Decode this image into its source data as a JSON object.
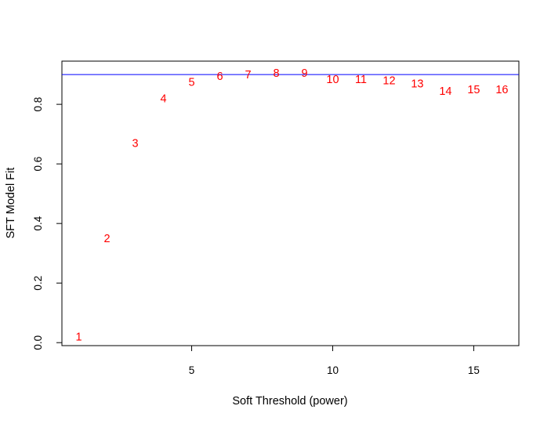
{
  "chart_data": {
    "type": "scatter",
    "title": "",
    "xlabel": "Soft Threshold (power)",
    "ylabel": "SFT Model Fit",
    "xlim": [
      0.4,
      16.6
    ],
    "ylim": [
      -0.01,
      0.945
    ],
    "xticks": [
      5,
      10,
      15
    ],
    "yticks": [
      0.0,
      0.2,
      0.4,
      0.6,
      0.8
    ],
    "xtick_labels": [
      "5",
      "10",
      "15"
    ],
    "ytick_labels": [
      "0.0",
      "0.2",
      "0.4",
      "0.6",
      "0.8"
    ],
    "grid": false,
    "marker": "text-labels",
    "point_color": "#ff0000",
    "hline": {
      "y": 0.9,
      "color": "#0000ff"
    },
    "points": [
      {
        "x": 1,
        "y": 0.02,
        "label": "1"
      },
      {
        "x": 2,
        "y": 0.35,
        "label": "2"
      },
      {
        "x": 3,
        "y": 0.67,
        "label": "3"
      },
      {
        "x": 4,
        "y": 0.82,
        "label": "4"
      },
      {
        "x": 5,
        "y": 0.875,
        "label": "5"
      },
      {
        "x": 6,
        "y": 0.895,
        "label": "6"
      },
      {
        "x": 7,
        "y": 0.9,
        "label": "7"
      },
      {
        "x": 8,
        "y": 0.905,
        "label": "8"
      },
      {
        "x": 9,
        "y": 0.905,
        "label": "9"
      },
      {
        "x": 10,
        "y": 0.885,
        "label": "10"
      },
      {
        "x": 11,
        "y": 0.885,
        "label": "11"
      },
      {
        "x": 12,
        "y": 0.88,
        "label": "12"
      },
      {
        "x": 13,
        "y": 0.87,
        "label": "13"
      },
      {
        "x": 14,
        "y": 0.845,
        "label": "14"
      },
      {
        "x": 15,
        "y": 0.85,
        "label": "15"
      },
      {
        "x": 16,
        "y": 0.85,
        "label": "16"
      }
    ]
  }
}
